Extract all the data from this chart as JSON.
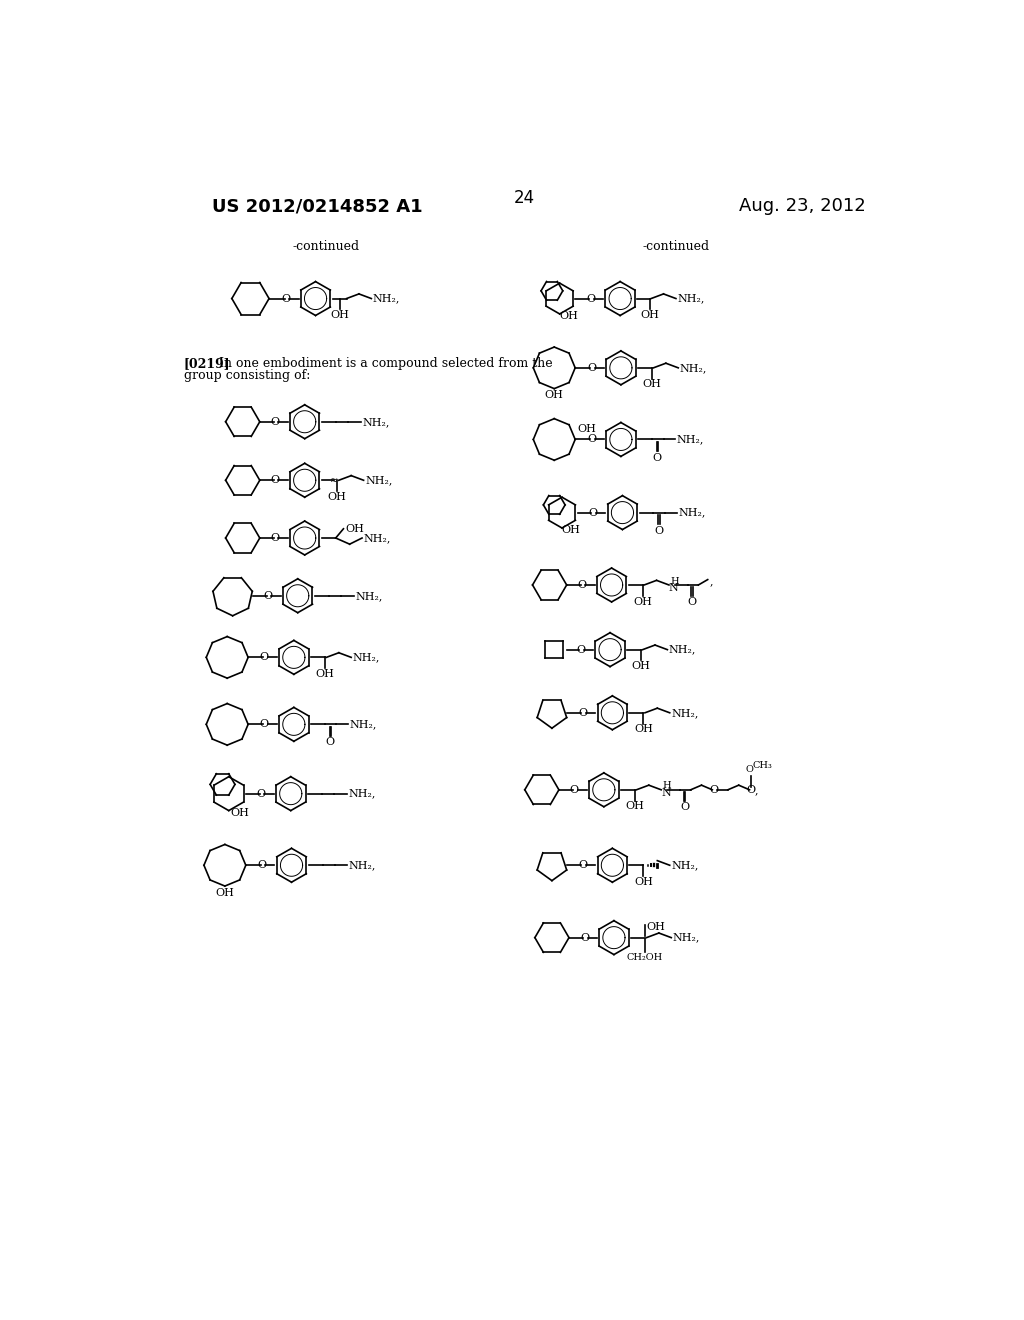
{
  "page_number": "24",
  "patent_number": "US 2012/0214852 A1",
  "date": "Aug. 23, 2012",
  "background_color": "#ffffff",
  "text_color": "#000000",
  "font_size_header": 13,
  "font_size_page": 12,
  "font_size_body": 9,
  "continued_label": "-continued",
  "paragraph_text": "[0219] In one embodiment is a compound selected from the group consisting of:"
}
